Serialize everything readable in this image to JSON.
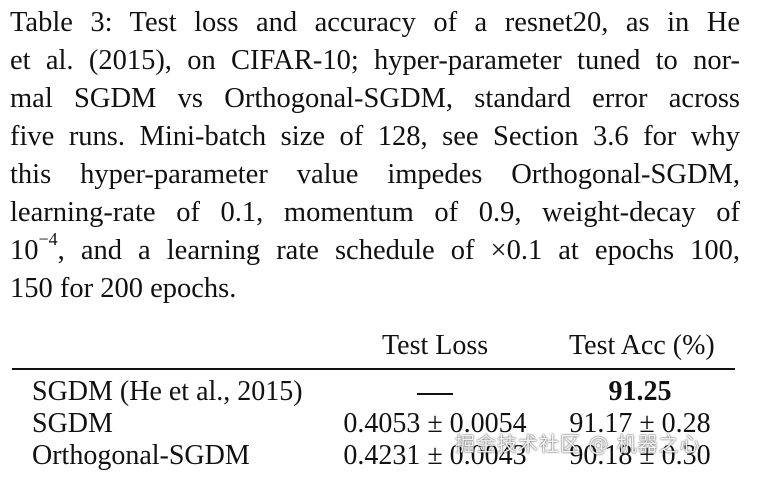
{
  "caption": {
    "line1": "Table 3: Test loss and accuracy of a resnet20, as in He",
    "line2": "et al. (2015), on CIFAR-10; hyper-parameter tuned to nor-",
    "line3": "mal SGDM vs Orthogonal-SGDM, standard error across",
    "line4": "five runs. Mini-batch size of 128, see Section 3.6 for why",
    "line5": "this hyper-parameter value impedes Orthogonal-SGDM,",
    "line6": "learning-rate of 0.1, momentum of 0.9, weight-decay of",
    "line7_base": "10",
    "line7_exp": "−4",
    "line7_rest": ", and a learning rate schedule of ×0.1 at epochs 100,",
    "line8": "150 for 200 epochs."
  },
  "table": {
    "headers": {
      "loss": "Test Loss",
      "acc": "Test Acc (%)"
    },
    "rows": [
      {
        "name": "SGDM (He et al., 2015)",
        "loss": "",
        "acc": "91.25"
      },
      {
        "name": "SGDM",
        "loss": "0.4053 ± 0.0054",
        "acc": "91.17 ± 0.28"
      },
      {
        "name": "Orthogonal-SGDM",
        "loss": "0.4231 ± 0.0043",
        "acc": "90.18 ± 0.30"
      }
    ]
  },
  "watermark": "掘金技术社区 @ 机器之心"
}
